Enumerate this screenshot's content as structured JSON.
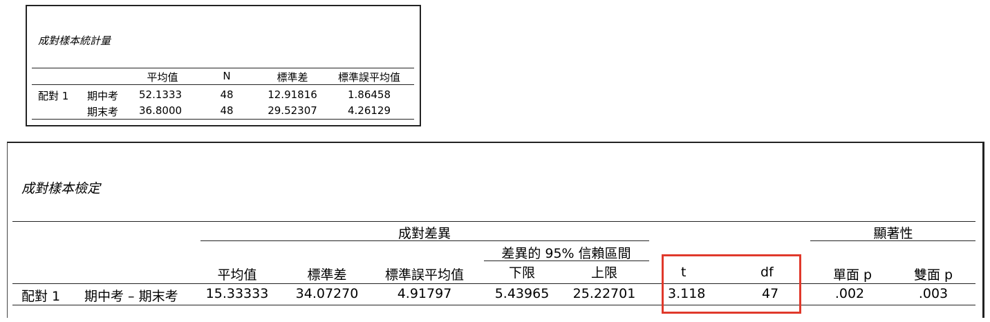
{
  "table1": {
    "title": "成對樣本統計量",
    "headers": [
      "平均值",
      "N",
      "標準差",
      "標準誤平均值"
    ],
    "pair_label": "配對 1",
    "rows": [
      {
        "name": "期中考",
        "mean": "52.1333",
        "n": "48",
        "sd": "12.91816",
        "se": "1.86458"
      },
      {
        "name": "期末考",
        "mean": "36.8000",
        "n": "48",
        "sd": "29.52307",
        "se": "4.26129"
      }
    ]
  },
  "table2": {
    "title": "成對樣本檢定",
    "group_paired": "成對差異",
    "group_ci": "差異的 95% 信賴區間",
    "group_sig": "顯著性",
    "headers": {
      "mean": "平均值",
      "sd": "標準差",
      "se": "標準誤平均值",
      "lower": "下限",
      "upper": "上限",
      "t": "t",
      "df": "df",
      "one_p": "單面 p",
      "two_p": "雙面 p"
    },
    "row": {
      "pair": "配對 1",
      "label": "期中考 – 期末考",
      "mean": "15.33333",
      "sd": "34.07270",
      "se": "4.91797",
      "lower": "5.43965",
      "upper": "25.22701",
      "t": "3.118",
      "df": "47",
      "one_p": ".002",
      "two_p": ".003"
    }
  },
  "highlight_color": "#e0392b"
}
